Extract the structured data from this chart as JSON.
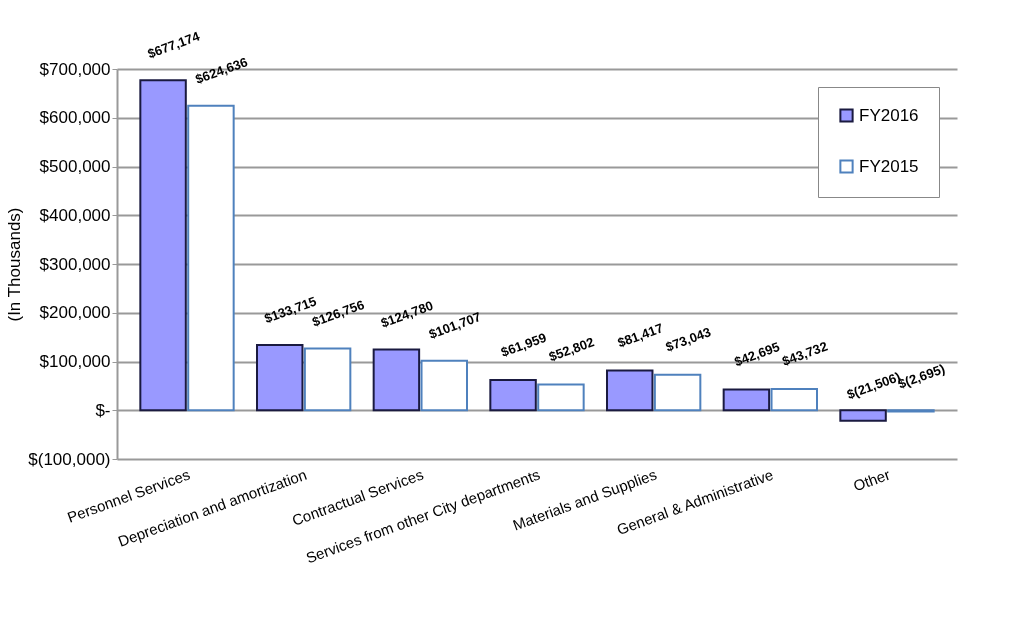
{
  "chart_data": {
    "type": "bar",
    "ylabel": "(In Thousands)",
    "categories": [
      "Personnel Services",
      "Depreciation and amortization",
      "Contractual Services",
      "Services from other City departments",
      "Materials and Supplies",
      "General & Administrative",
      "Other"
    ],
    "series": [
      {
        "name": "FY2016",
        "color": "#9999ff",
        "values": [
          677174,
          133715,
          124780,
          61959,
          81417,
          42695,
          -21506
        ],
        "value_labels": [
          "$677,174",
          "$133,715",
          "$124,780",
          "$61,959",
          "$81,417",
          "$42,695",
          "$(21,506)"
        ]
      },
      {
        "name": "FY2015",
        "color": "#ffffff",
        "values": [
          624636,
          126756,
          101707,
          52802,
          73043,
          43732,
          -2695
        ],
        "value_labels": [
          "$624,636",
          "$126,756",
          "$101,707",
          "$52,802",
          "$73,043",
          "$43,732",
          "$(2,695)"
        ]
      }
    ],
    "ylim": [
      -100000,
      700000
    ],
    "yticks": [
      {
        "value": -100000,
        "label": "$(100,000)"
      },
      {
        "value": 0,
        "label": "$-"
      },
      {
        "value": 100000,
        "label": "$100,000"
      },
      {
        "value": 200000,
        "label": "$200,000"
      },
      {
        "value": 300000,
        "label": "$300,000"
      },
      {
        "value": 400000,
        "label": "$400,000"
      },
      {
        "value": 500000,
        "label": "$500,000"
      },
      {
        "value": 600000,
        "label": "$600,000"
      },
      {
        "value": 700000,
        "label": "$700,000"
      }
    ],
    "grid": "y",
    "legend": "top right"
  }
}
